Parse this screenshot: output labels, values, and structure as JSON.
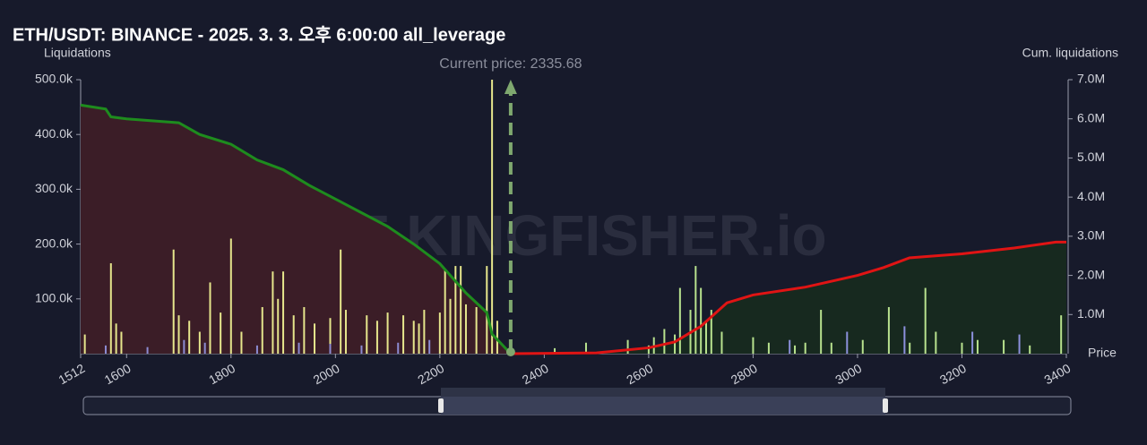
{
  "chart_data": {
    "type": "bar",
    "title": "ETH/USDT: BINANCE - 2025. 3. 3. 오후 6:00:00 all_leverage",
    "y_label": "Liquidations",
    "y2_label": "Cum. liquidations",
    "x_label": "Price",
    "annotation": "Current price: 2335.68",
    "current_price": 2335.68,
    "watermark": "THE KINGFISHER.io",
    "xlim": [
      1512,
      3400
    ],
    "xticks": [
      1512,
      1600,
      1800,
      2000,
      2200,
      2400,
      2600,
      2800,
      3000,
      3200,
      3400
    ],
    "ylim": [
      0,
      500000
    ],
    "yticks": [
      {
        "value": 100000,
        "label": "100.0k"
      },
      {
        "value": 200000,
        "label": "200.0k"
      },
      {
        "value": 300000,
        "label": "300.0k"
      },
      {
        "value": 400000,
        "label": "400.0k"
      },
      {
        "value": 500000,
        "label": "500.0k"
      }
    ],
    "y2lim": [
      0,
      7000000
    ],
    "y2ticks": [
      {
        "value": 1000000,
        "label": "1.0M"
      },
      {
        "value": 2000000,
        "label": "2.0M"
      },
      {
        "value": 3000000,
        "label": "3.0M"
      },
      {
        "value": 4000000,
        "label": "4.0M"
      },
      {
        "value": 5000000,
        "label": "5.0M"
      },
      {
        "value": 6000000,
        "label": "6.0M"
      },
      {
        "value": 7000000,
        "label": "7.0M"
      }
    ],
    "series": [
      {
        "type": "bar",
        "color": "#e6e68c",
        "x": [
          1520,
          1570,
          1580,
          1590,
          1690,
          1700,
          1720,
          1740,
          1760,
          1780,
          1800,
          1820,
          1860,
          1880,
          1890,
          1900,
          1920,
          1940,
          1960,
          1990,
          2010,
          2020,
          2060,
          2080,
          2100,
          2130,
          2150,
          2160,
          2170,
          2200,
          2210,
          2220,
          2230,
          2240,
          2250,
          2270,
          2290,
          2300,
          2310
        ],
        "values": [
          35000,
          165000,
          55000,
          40000,
          190000,
          70000,
          60000,
          40000,
          130000,
          75000,
          210000,
          40000,
          85000,
          150000,
          100000,
          150000,
          70000,
          85000,
          55000,
          65000,
          190000,
          80000,
          70000,
          60000,
          75000,
          70000,
          60000,
          55000,
          80000,
          75000,
          155000,
          100000,
          160000,
          160000,
          90000,
          85000,
          160000,
          500000,
          60000
        ]
      },
      {
        "type": "bar",
        "color": "#8c8cd2",
        "x": [
          1560,
          1640,
          1710,
          1750,
          1850,
          1930,
          1990,
          2050,
          2120,
          2180
        ],
        "values": [
          15000,
          12000,
          25000,
          20000,
          15000,
          20000,
          18000,
          15000,
          20000,
          25000
        ]
      },
      {
        "type": "bar",
        "color": "#b8e28e",
        "x": [
          2420,
          2480,
          2560,
          2600,
          2610,
          2630,
          2650,
          2660,
          2680,
          2690,
          2700,
          2710,
          2720,
          2740,
          2800,
          2830,
          2880,
          2900,
          2930,
          2950,
          3010,
          3060,
          3100,
          3130,
          3150,
          3200,
          3230,
          3280,
          3330,
          3390
        ],
        "values": [
          10000,
          20000,
          25000,
          15000,
          30000,
          45000,
          35000,
          120000,
          80000,
          160000,
          120000,
          60000,
          80000,
          40000,
          30000,
          20000,
          15000,
          20000,
          80000,
          20000,
          25000,
          85000,
          20000,
          120000,
          40000,
          20000,
          25000,
          25000,
          15000,
          70000
        ]
      },
      {
        "type": "bar",
        "color": "#8c90dc",
        "x": [
          2870,
          2980,
          3090,
          3220,
          3310
        ],
        "values": [
          25000,
          40000,
          50000,
          40000,
          35000
        ]
      },
      {
        "type": "area",
        "axis": "y2",
        "color": "#1e8c1e",
        "fill": "#3b1d27",
        "x": [
          1512,
          1560,
          1570,
          1600,
          1700,
          1740,
          1800,
          1850,
          1900,
          1950,
          2000,
          2050,
          2100,
          2150,
          2200,
          2250,
          2290,
          2300,
          2335.68
        ],
        "values": [
          6350000,
          6250000,
          6050000,
          6000000,
          5900000,
          5600000,
          5350000,
          4950000,
          4700000,
          4300000,
          3950000,
          3600000,
          3250000,
          2800000,
          2300000,
          1550000,
          1050000,
          500000,
          0
        ]
      },
      {
        "type": "area",
        "axis": "y2",
        "color": "#e01414",
        "fill": "#17291f",
        "x": [
          2335.68,
          2500,
          2600,
          2650,
          2700,
          2750,
          2800,
          2900,
          3000,
          3050,
          3100,
          3200,
          3300,
          3380,
          3400
        ],
        "values": [
          0,
          20000,
          150000,
          300000,
          700000,
          1300000,
          1500000,
          1700000,
          2000000,
          2200000,
          2450000,
          2550000,
          2700000,
          2850000,
          2850000
        ]
      }
    ]
  }
}
